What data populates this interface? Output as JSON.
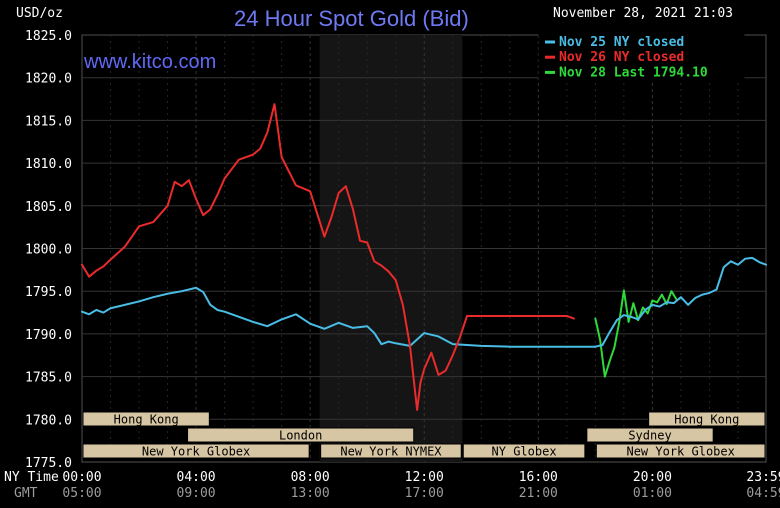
{
  "chart": {
    "title": "24 Hour Spot Gold (Bid)",
    "subtitle": "www.kitco.com",
    "date": "November 28, 2021 21:03",
    "y_unit": "USD/oz",
    "x_label_primary": "NY Time",
    "x_label_secondary": "GMT",
    "colors": {
      "background": "#000000",
      "grid": "#353535",
      "grid_dark": "#252525",
      "session": "#151515",
      "box": "#d7c6a3",
      "nov25": "#49bde5",
      "nov26": "#ea2b2b",
      "nov28": "#2ed93a"
    }
  },
  "legend": [
    {
      "label": "Nov 25 NY closed",
      "color": "#49bde5"
    },
    {
      "label": "Nov 26 NY closed",
      "color": "#ea2b2b"
    },
    {
      "label": "Nov 28 Last 1794.10",
      "color": "#2ed93a"
    }
  ],
  "sessions": [
    {
      "label": "Hong Kong"
    },
    {
      "label": "London"
    },
    {
      "label": "New York Globex"
    },
    {
      "label": "New York NYMEX"
    },
    {
      "label": "NY Globex"
    },
    {
      "label": "Hong Kong"
    },
    {
      "label": "Sydney"
    },
    {
      "label": "New York Globex"
    }
  ],
  "chart_data": {
    "type": "line",
    "title": "24 Hour Spot Gold (Bid)",
    "ylabel": "USD/oz",
    "xlabel": "NY Time",
    "ylim": [
      1775,
      1825
    ],
    "x_ticks_primary": [
      "00:00",
      "04:00",
      "08:00",
      "12:00",
      "16:00",
      "20:00",
      "23:59"
    ],
    "x_ticks_secondary": [
      "05:00",
      "09:00",
      "13:00",
      "17:00",
      "21:00",
      "01:00",
      "04:59"
    ],
    "y_ticks": [
      "1825.0",
      "1820.0",
      "1815.0",
      "1810.0",
      "1805.0",
      "1800.0",
      "1795.0",
      "1790.0",
      "1785.0",
      "1780.0",
      "1775.0"
    ],
    "series": [
      {
        "name": "Nov 25 NY closed",
        "color": "#49bde5",
        "x": [
          "00:00",
          "00:15",
          "00:30",
          "00:45",
          "01:00",
          "01:30",
          "02:00",
          "02:30",
          "03:00",
          "03:30",
          "04:00",
          "04:15",
          "04:30",
          "04:45",
          "05:00",
          "05:30",
          "06:00",
          "06:30",
          "07:00",
          "07:30",
          "08:00",
          "08:30",
          "09:00",
          "09:30",
          "10:00",
          "10:15",
          "10:30",
          "10:45",
          "11:00",
          "11:30",
          "12:00",
          "12:30",
          "13:00",
          "14:00",
          "15:00",
          "16:00",
          "17:00",
          "18:00"
        ],
        "values": [
          1792.6,
          1792.3,
          1792.8,
          1792.5,
          1793.0,
          1793.4,
          1793.8,
          1794.3,
          1794.7,
          1795.0,
          1795.4,
          1794.9,
          1793.4,
          1792.8,
          1792.6,
          1792.0,
          1791.4,
          1790.9,
          1791.7,
          1792.3,
          1791.2,
          1790.6,
          1791.3,
          1790.7,
          1790.9,
          1790.1,
          1788.8,
          1789.1,
          1788.9,
          1788.6,
          1790.1,
          1789.7,
          1788.8,
          1788.6,
          1788.5,
          1788.5,
          1788.5,
          1788.5
        ]
      },
      {
        "name": "Nov 26 NY closed",
        "color": "#ea2b2b",
        "x": [
          "00:00",
          "00:15",
          "00:30",
          "00:45",
          "01:00",
          "01:30",
          "02:00",
          "02:30",
          "03:00",
          "03:15",
          "03:30",
          "03:45",
          "04:00",
          "04:15",
          "04:30",
          "04:45",
          "05:00",
          "05:15",
          "05:30",
          "06:00",
          "06:15",
          "06:30",
          "06:45",
          "07:00",
          "07:30",
          "08:00",
          "08:30",
          "08:45",
          "09:00",
          "09:15",
          "09:30",
          "09:45",
          "10:00",
          "10:15",
          "10:30",
          "10:45",
          "11:00",
          "11:15",
          "11:30",
          "11:45",
          "11:52",
          "12:00",
          "12:15",
          "12:30",
          "12:45",
          "13:00",
          "13:15",
          "13:30",
          "13:45",
          "14:00",
          "15:00",
          "16:00",
          "17:00",
          "17:15"
        ],
        "values": [
          1798.1,
          1796.7,
          1797.4,
          1797.9,
          1798.7,
          1800.2,
          1802.6,
          1803.1,
          1805.0,
          1807.8,
          1807.3,
          1808.0,
          1805.8,
          1803.9,
          1804.6,
          1806.3,
          1808.2,
          1809.3,
          1810.4,
          1811.0,
          1811.7,
          1813.6,
          1816.9,
          1810.7,
          1807.4,
          1806.7,
          1801.4,
          1803.7,
          1806.5,
          1807.3,
          1804.6,
          1800.9,
          1800.7,
          1798.5,
          1798.0,
          1797.3,
          1796.3,
          1793.4,
          1788.6,
          1781.1,
          1784.3,
          1785.9,
          1787.8,
          1785.2,
          1785.7,
          1787.5,
          1789.6,
          1792.1,
          1792.1,
          1792.1,
          1792.1,
          1792.1,
          1792.1,
          1791.8
        ]
      },
      {
        "name": "Nov 28 Last 1794.10",
        "color": "#2ed93a",
        "x": [
          "18:00",
          "18:10",
          "18:20",
          "18:30",
          "18:40",
          "18:50",
          "19:00",
          "19:10",
          "19:20",
          "19:30",
          "19:40",
          "19:50",
          "20:00",
          "20:10",
          "20:20",
          "20:30",
          "20:40",
          "20:50"
        ],
        "values": [
          1791.8,
          1789.3,
          1785.0,
          1786.8,
          1788.4,
          1791.3,
          1795.1,
          1791.4,
          1793.6,
          1791.6,
          1793.1,
          1792.4,
          1793.9,
          1793.7,
          1794.6,
          1793.5,
          1795.0,
          1794.1
        ]
      },
      {
        "name": "",
        "color": "#49bde5",
        "x": [
          "18:00",
          "18:15",
          "18:30",
          "18:45",
          "19:00",
          "19:15",
          "19:30",
          "19:45",
          "20:00",
          "20:15",
          "20:30",
          "20:45",
          "21:00",
          "21:15",
          "21:30",
          "21:45",
          "22:00",
          "22:15",
          "22:30",
          "22:45",
          "23:00",
          "23:15",
          "23:30",
          "23:45",
          "23:59"
        ],
        "values": [
          1788.5,
          1788.7,
          1790.2,
          1791.6,
          1792.2,
          1792.0,
          1791.7,
          1792.8,
          1793.4,
          1793.2,
          1793.7,
          1793.6,
          1794.3,
          1793.4,
          1794.2,
          1794.6,
          1794.8,
          1795.2,
          1797.8,
          1798.5,
          1798.1,
          1798.8,
          1798.9,
          1798.4,
          1798.1
        ]
      }
    ]
  }
}
